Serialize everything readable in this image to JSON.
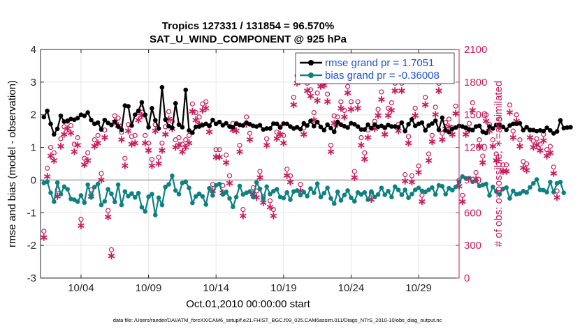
{
  "colors": {
    "rmse": "#000000",
    "bias": "#0d8082",
    "obs": "#cc1a5c",
    "legend_text": "#1f4fe0",
    "zero_line": "#a6a6a6",
    "grid": "#e6e6e6"
  },
  "footer": {
    "datafile": "data file: /Users/raeder/DAI/ATM_forcXX/CAM6_setup/f.e21.FHIST_BGC.f09_025.CAM6assim.011/Diags_NTrS_2010-10/obs_diag_output.nc"
  },
  "chart_data": {
    "type": "line",
    "title": "Tropics 127331 / 131854 = 96.570%",
    "subtitle": "SAT_U_WIND_COMPONENT @ 925 hPa",
    "xlabel": "Oct.01,2010 00:00:00 start",
    "ylabel": "rmse and bias (model - observation)",
    "y2label": "# of obs: o=possible; ∗=assimilated",
    "xlim": [
      1,
      32
    ],
    "ylim": [
      -3,
      4
    ],
    "y2lim": [
      0,
      2100
    ],
    "grid": true,
    "legend_position": "top-right",
    "x_ticks": [
      4,
      9,
      14,
      19,
      24,
      29
    ],
    "x_tick_labels": [
      "10/04",
      "10/09",
      "10/14",
      "10/19",
      "10/24",
      "10/29"
    ],
    "y_ticks": [
      -3,
      -2,
      -1,
      0,
      1,
      2,
      3,
      4
    ],
    "y_tick_labels": [
      "-3",
      "-2",
      "-1",
      "0",
      "1",
      "2",
      "3",
      "4"
    ],
    "y2_ticks": [
      0,
      300,
      600,
      900,
      1200,
      1500,
      1800,
      2100
    ],
    "y2_tick_labels": [
      "0",
      "300",
      "600",
      "900",
      "1200",
      "1500",
      "1800",
      "2100"
    ],
    "x_start": 1.25,
    "x_step": 0.25,
    "series": [
      {
        "name": "rmse grand pr = 1.7051",
        "axis": "left",
        "values": [
          1.93,
          2.12,
          1.72,
          1.4,
          1.57,
          1.97,
          1.79,
          1.82,
          1.87,
          1.85,
          1.9,
          2.0,
          1.97,
          2.07,
          1.84,
          1.72,
          1.76,
          1.55,
          1.84,
          1.75,
          1.69,
          1.79,
          1.64,
          1.54,
          2.28,
          2.26,
          1.67,
          2.0,
          2.12,
          2.38,
          2.0,
          1.62,
          2.2,
          1.83,
          1.58,
          2.84,
          1.85,
          1.65,
          1.6,
          2.35,
          1.7,
          1.62,
          2.76,
          1.52,
          1.45,
          1.63,
          1.64,
          1.68,
          1.72,
          1.66,
          1.84,
          1.72,
          1.78,
          1.68,
          1.74,
          1.64,
          1.62,
          1.72,
          1.69,
          1.67,
          1.76,
          1.71,
          1.66,
          1.64,
          1.68,
          1.55,
          1.58,
          1.58,
          1.73,
          1.72,
          1.61,
          1.73,
          1.72,
          1.64,
          1.58,
          1.62,
          1.56,
          1.74,
          1.67,
          1.81,
          1.65,
          1.78,
          1.63,
          1.53,
          1.7,
          1.59,
          1.48,
          1.78,
          1.7,
          1.65,
          1.61,
          1.74,
          1.71,
          1.64,
          1.55,
          1.55,
          1.7,
          1.59,
          1.7,
          1.63,
          1.66,
          1.61,
          1.69,
          1.64,
          1.64,
          1.62,
          1.76,
          1.5,
          1.71,
          1.86,
          1.66,
          1.72,
          1.76,
          1.52,
          1.67,
          1.73,
          1.82,
          1.54,
          1.91,
          1.52,
          1.47,
          1.57,
          1.61,
          1.66,
          1.64,
          1.6,
          1.55,
          1.53,
          1.64,
          1.66,
          1.48,
          1.44,
          1.64,
          1.58,
          1.69,
          1.7,
          1.63,
          1.54,
          1.67,
          1.72,
          1.72,
          1.74,
          1.53,
          1.62,
          1.53,
          1.53,
          1.5,
          1.52,
          1.5,
          1.6,
          1.52,
          1.43,
          1.49,
          1.83,
          1.59,
          1.61,
          1.62
        ]
      },
      {
        "name": "bias grand pr = -0.36008",
        "axis": "left",
        "values": [
          -0.09,
          -0.05,
          -0.39,
          -0.66,
          -0.08,
          -0.43,
          -0.2,
          -0.28,
          -0.58,
          -0.6,
          -0.66,
          -0.47,
          -0.69,
          -0.14,
          -0.52,
          -0.21,
          -0.12,
          -0.76,
          -0.65,
          -0.28,
          -0.42,
          -0.67,
          -0.14,
          -0.76,
          -0.35,
          -0.49,
          -0.41,
          -0.53,
          -0.4,
          -0.83,
          -0.96,
          -0.51,
          -0.43,
          -1.07,
          -0.54,
          -0.76,
          -0.21,
          -0.13,
          0.13,
          -0.32,
          -0.43,
          -0.09,
          -0.05,
          -0.24,
          -0.7,
          -0.5,
          -0.42,
          -0.5,
          -0.75,
          -0.25,
          -0.47,
          -0.16,
          -0.12,
          -0.44,
          -0.36,
          -0.56,
          -0.82,
          -0.52,
          -0.18,
          -0.44,
          -0.39,
          -0.35,
          -0.52,
          -0.07,
          -0.27,
          -0.58,
          -0.2,
          -0.43,
          -0.34,
          -0.28,
          -0.52,
          -0.55,
          -0.38,
          -0.6,
          -0.35,
          -0.32,
          -0.46,
          -0.37,
          -0.49,
          -0.26,
          -0.39,
          -0.11,
          -0.52,
          -0.4,
          -0.24,
          -0.56,
          -0.72,
          -0.36,
          -0.62,
          -0.46,
          -0.32,
          -0.54,
          -0.65,
          -0.38,
          -0.44,
          -0.38,
          -0.6,
          -0.35,
          -0.52,
          -0.44,
          -0.24,
          -0.45,
          -0.34,
          -0.52,
          -0.2,
          -0.3,
          -0.45,
          -0.3,
          -0.54,
          -0.43,
          -0.3,
          -0.24,
          -0.33,
          -0.36,
          -0.3,
          -0.23,
          -0.44,
          -0.16,
          -0.19,
          -0.43,
          -0.25,
          -0.31,
          -0.21,
          -0.06,
          0.11,
          0.05,
          0.06,
          -0.05,
          -0.02,
          -0.18,
          -0.15,
          -0.12,
          -0.47,
          -0.21,
          -0.35,
          -0.43,
          -0.27,
          -0.23,
          -0.56,
          -0.33,
          -0.43,
          -0.41,
          -0.34,
          -0.38,
          -0.22,
          -0.1,
          0.02,
          -0.3,
          -0.31,
          -0.37,
          -0.06,
          -0.37,
          -0.1,
          -0.06,
          -0.39
        ]
      },
      {
        "name": "obs possible",
        "axis": "right",
        "marker": "o",
        "values": [
          430,
          1010,
          1200,
          1150,
          810,
          1280,
          1390,
          1440,
          1400,
          1230,
          1290,
          540,
          1100,
          1150,
          810,
          1270,
          1310,
          960,
          1360,
          620,
          260,
          1490,
          1470,
          1340,
          1100,
          1410,
          1300,
          1310,
          1520,
          1560,
          1310,
          1240,
          1090,
          1410,
          1110,
          1240,
          1390,
          1530,
          1440,
          1270,
          1290,
          1230,
          1270,
          1310,
          1600,
          1520,
          1480,
          1600,
          1620,
          1400,
          860,
          1180,
          1180,
          850,
          1130,
          940,
          1420,
          1420,
          1220,
          630,
          1480,
          1330,
          830,
          800,
          980,
          750,
          1280,
          710,
          630,
          1340,
          1390,
          1310,
          1000,
          940,
          1660,
          1860,
          860,
          1380,
          1790,
          1730,
          1520,
          1700,
          1830,
          1840,
          1690,
          1220,
          1490,
          1480,
          1620,
          1540,
          1760,
          1620,
          980,
          1620,
          1290,
          1150,
          1360,
          780,
          1440,
          1550,
          1710,
          1380,
          1560,
          1610,
          1790,
          1410,
          1790,
          950,
          1300,
          940,
          1560,
          1030,
          760,
          1660,
          1140,
          1310,
          1570,
          1790,
          1330,
          1430,
          1460,
          1380,
          1580,
          900,
          760,
          1380,
          1420,
          1610,
          970,
          1270,
          1120,
          1500,
          1410,
          1270,
          1140,
          1460,
          1040,
          1040,
          1590,
          1350,
          1500,
          1270,
          1070,
          1050,
          1360,
          1260,
          1280,
          1230,
          1320,
          1180,
          1210,
          1020,
          800
        ]
      },
      {
        "name": "obs assimilated",
        "axis": "right",
        "marker": "*",
        "values": [
          380,
          940,
          1130,
          1090,
          760,
          1220,
          1330,
          1380,
          1340,
          1170,
          1230,
          490,
          1050,
          1090,
          760,
          1220,
          1250,
          910,
          1300,
          570,
          210,
          1440,
          1410,
          1280,
          1040,
          1360,
          1240,
          1250,
          1460,
          1500,
          1250,
          1180,
          1040,
          1360,
          1060,
          1180,
          1330,
          1470,
          1380,
          1210,
          1230,
          1170,
          1210,
          1250,
          1540,
          1460,
          1420,
          1550,
          1570,
          1350,
          810,
          1120,
          1120,
          790,
          1070,
          880,
          1370,
          1360,
          1170,
          580,
          1420,
          1280,
          780,
          750,
          930,
          700,
          1230,
          660,
          580,
          1290,
          1330,
          1250,
          950,
          890,
          1600,
          1800,
          810,
          1330,
          1730,
          1680,
          1460,
          1640,
          1770,
          1780,
          1630,
          1170,
          1430,
          1420,
          1570,
          1490,
          1710,
          1560,
          930,
          1570,
          1230,
          1100,
          1300,
          730,
          1380,
          1500,
          1650,
          1330,
          1500,
          1550,
          1730,
          1360,
          1730,
          900,
          1250,
          890,
          1500,
          980,
          710,
          1600,
          1090,
          1260,
          1510,
          1730,
          1280,
          1380,
          1400,
          1330,
          1520,
          850,
          710,
          1330,
          1370,
          1550,
          920,
          1220,
          1070,
          1450,
          1360,
          1220,
          1090,
          1400,
          990,
          990,
          1530,
          1300,
          1450,
          1220,
          1020,
          1000,
          1300,
          1210,
          1230,
          1180,
          1270,
          1130,
          1160,
          970,
          750
        ]
      }
    ],
    "annotations": [
      "10/04",
      "10/09"
    ]
  }
}
